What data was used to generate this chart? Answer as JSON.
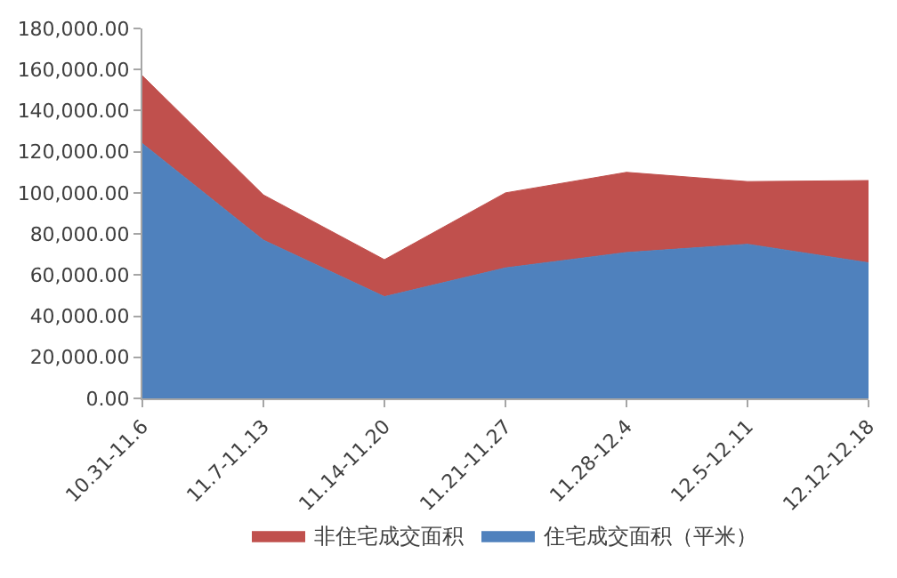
{
  "chart_data": {
    "type": "area",
    "stacked": true,
    "categories": [
      "10.31-11.6",
      "11.7-11.13",
      "11.14-11.20",
      "11.21-11.27",
      "11.28-12.4",
      "12.5-12.11",
      "12.12-12.18"
    ],
    "series": [
      {
        "name": "住宅成交面积（平米）",
        "color": "#4f81bd",
        "values": [
          124000,
          77000,
          49500,
          63500,
          71000,
          75000,
          66000
        ]
      },
      {
        "name": "非住宅成交面积",
        "color": "#c0504d",
        "values": [
          33000,
          22000,
          18000,
          36500,
          39000,
          30500,
          40000
        ]
      }
    ],
    "ylim": [
      0,
      180000
    ],
    "yticks": [
      {
        "value": 0,
        "label": "0.00"
      },
      {
        "value": 20000,
        "label": "20,000.00"
      },
      {
        "value": 40000,
        "label": "40,000.00"
      },
      {
        "value": 60000,
        "label": "60,000.00"
      },
      {
        "value": 80000,
        "label": "80,000.00"
      },
      {
        "value": 100000,
        "label": "100,000.00"
      },
      {
        "value": 120000,
        "label": "120,000.00"
      },
      {
        "value": 140000,
        "label": "140,000.00"
      },
      {
        "value": 160000,
        "label": "160,000.00"
      },
      {
        "value": 180000,
        "label": "180,000.00"
      }
    ],
    "grid": false,
    "legend": "bottom"
  }
}
